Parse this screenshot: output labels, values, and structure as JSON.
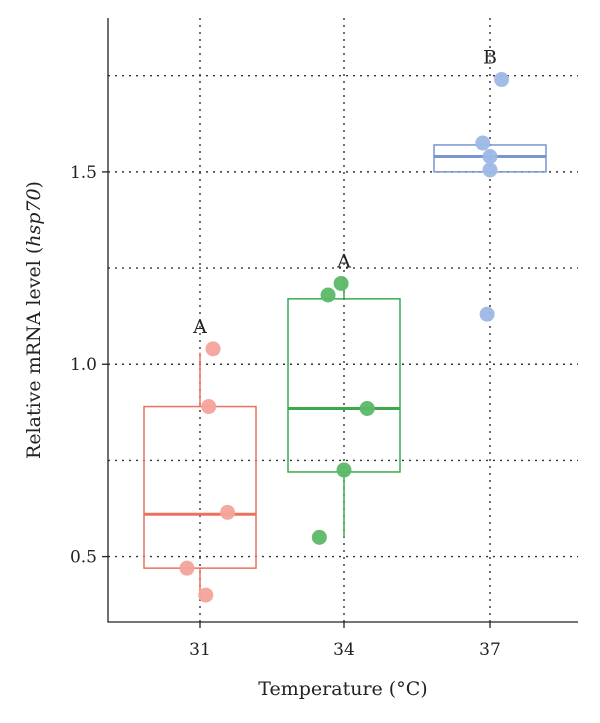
{
  "chart_data": {
    "type": "box",
    "xlabel": "Temperature (°C)",
    "ylabel_prefix": "Relative mRNA level (",
    "ylabel_italic": "hsp70",
    "ylabel_suffix": ")",
    "ylim": [
      0.33,
      1.9
    ],
    "yticks": [
      0.5,
      1.0,
      1.5
    ],
    "ytick_labels": [
      "0.5",
      "1.0",
      "1.5"
    ],
    "ygrid": [
      0.5,
      0.75,
      1.0,
      1.25,
      1.5,
      1.75
    ],
    "categories": [
      "31",
      "34",
      "37"
    ],
    "grid": true,
    "groups": [
      {
        "category": "31",
        "color": "#e8725f",
        "point_color": "#f4a39a",
        "significance": "A",
        "whisker_low": 0.4,
        "q1": 0.47,
        "median": 0.61,
        "q3": 0.89,
        "whisker_high": 1.03,
        "points": [
          {
            "dx": 0.09,
            "y": 1.04
          },
          {
            "dx": 0.06,
            "y": 0.89
          },
          {
            "dx": 0.19,
            "y": 0.615
          },
          {
            "dx": -0.09,
            "y": 0.47
          },
          {
            "dx": 0.04,
            "y": 0.4
          }
        ]
      },
      {
        "category": "34",
        "color": "#3aaa4c",
        "point_color": "#5cb868",
        "significance": "A",
        "whisker_low": 0.55,
        "q1": 0.72,
        "median": 0.885,
        "q3": 1.17,
        "whisker_high": 1.21,
        "points": [
          {
            "dx": -0.11,
            "y": 1.18
          },
          {
            "dx": -0.02,
            "y": 1.21
          },
          {
            "dx": 0.16,
            "y": 0.885
          },
          {
            "dx": 0.0,
            "y": 0.725
          },
          {
            "dx": -0.17,
            "y": 0.55
          }
        ]
      },
      {
        "category": "37",
        "color": "#7896d0",
        "point_color": "#9db8e6",
        "significance": "B",
        "whisker_low": 1.5,
        "q1": 1.5,
        "median": 1.54,
        "q3": 1.57,
        "whisker_high": 1.57,
        "points": [
          {
            "dx": 0.08,
            "y": 1.74
          },
          {
            "dx": -0.05,
            "y": 1.575
          },
          {
            "dx": 0.0,
            "y": 1.54
          },
          {
            "dx": 0.0,
            "y": 1.505
          },
          {
            "dx": -0.02,
            "y": 1.13
          }
        ]
      }
    ]
  }
}
